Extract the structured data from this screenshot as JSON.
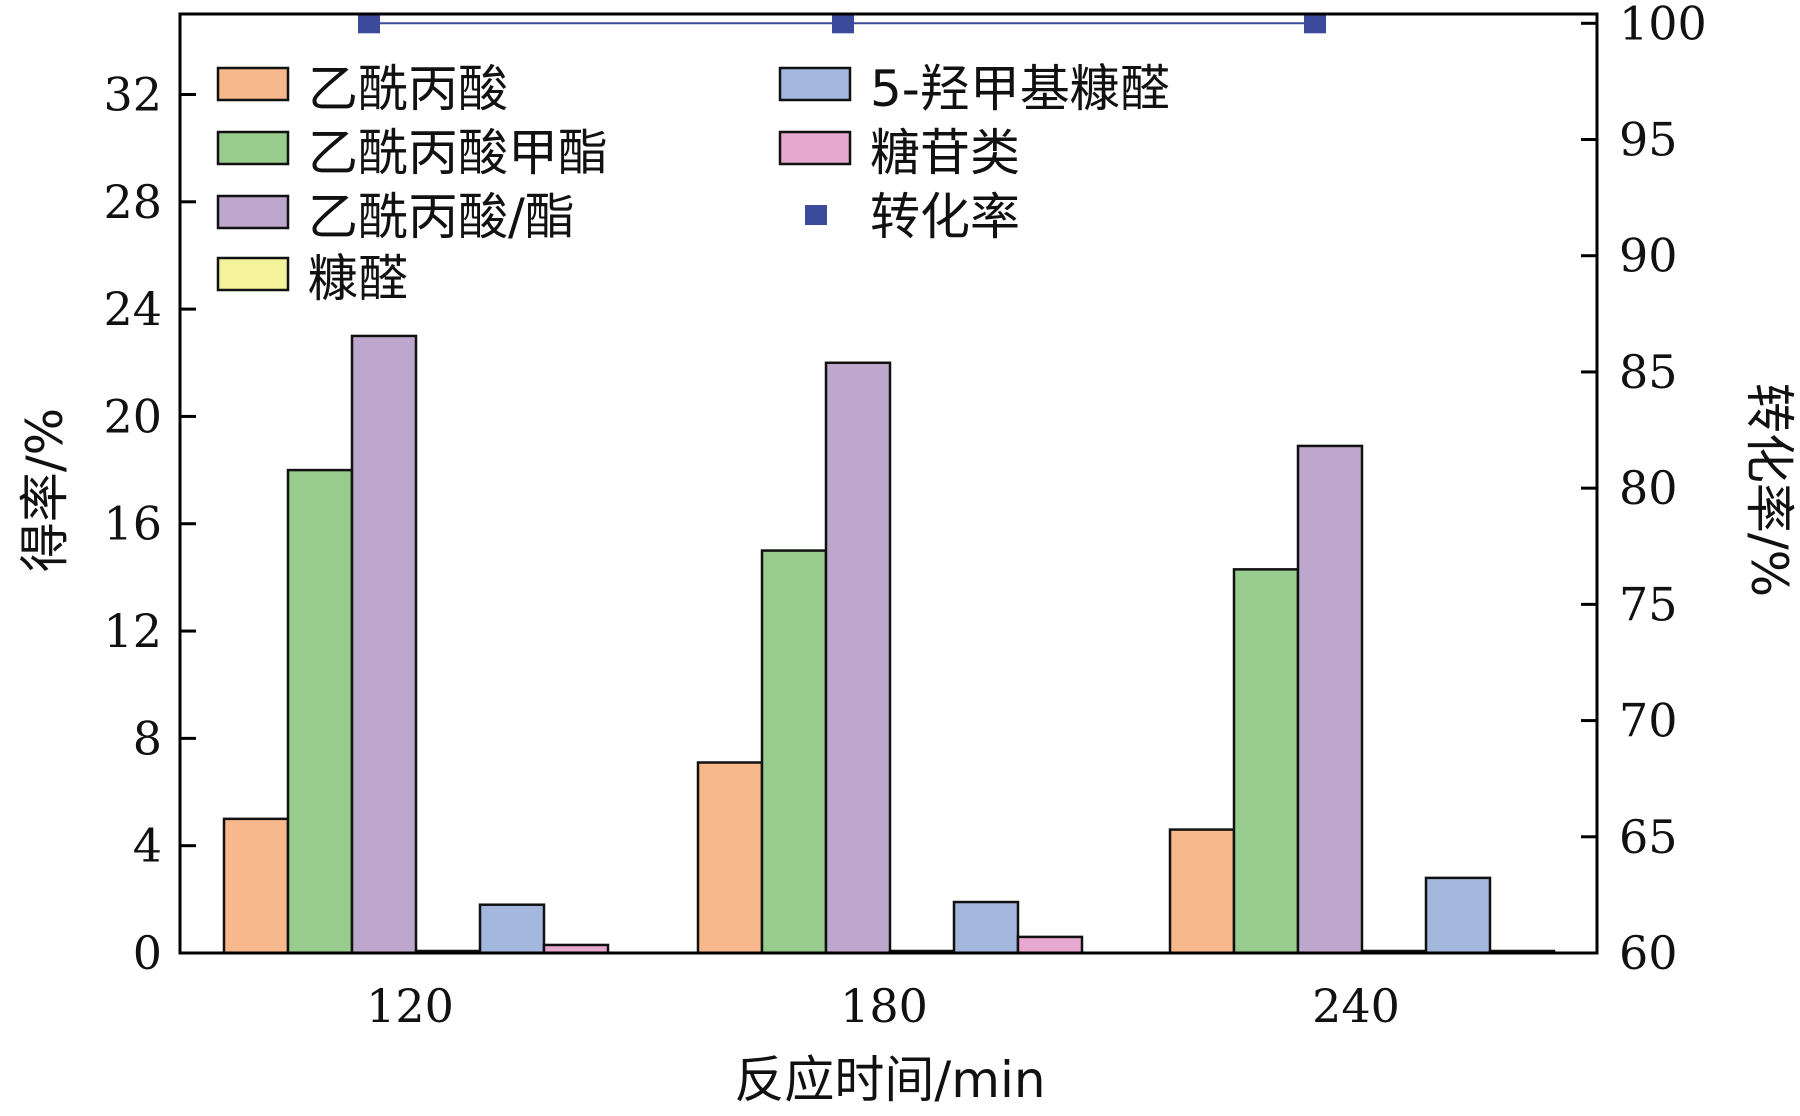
{
  "chart_data": {
    "type": "bar",
    "xlabel": "反应时间/min",
    "ylabel": "得率/%",
    "y2label": "转化率/%",
    "categories": [
      "120",
      "180",
      "240"
    ],
    "ylim": [
      0,
      35
    ],
    "y_ticks": [
      0,
      4,
      8,
      12,
      16,
      20,
      24,
      28,
      32
    ],
    "y2lim": [
      60,
      100.4
    ],
    "y2_ticks": [
      60,
      65,
      70,
      75,
      80,
      85,
      90,
      95,
      100
    ],
    "grid": false,
    "legend_position": "top-left",
    "series": [
      {
        "name": "乙酰丙酸",
        "color": "#F7B98B",
        "values": [
          5.0,
          7.1,
          4.6
        ]
      },
      {
        "name": "乙酰丙酸甲酯",
        "color": "#98CC8E",
        "values": [
          18.0,
          15.0,
          14.3
        ]
      },
      {
        "name": "乙酰丙酸/酯",
        "color": "#BDA7CC",
        "values": [
          23.0,
          22.0,
          18.9
        ]
      },
      {
        "name": "糠醛",
        "color": "#F4F29A",
        "values": [
          0.05,
          0.05,
          0.05
        ]
      },
      {
        "name": "5-羟甲基糠醛",
        "color": "#A3B8DC",
        "values": [
          1.8,
          1.9,
          2.8
        ]
      },
      {
        "name": "糖苷类",
        "color": "#E8A9D0",
        "values": [
          0.3,
          0.6,
          0.05
        ]
      }
    ],
    "line_series": {
      "name": "转化率",
      "axis": "right",
      "color": "#3B4A9A",
      "values": [
        100,
        100,
        100
      ]
    }
  }
}
